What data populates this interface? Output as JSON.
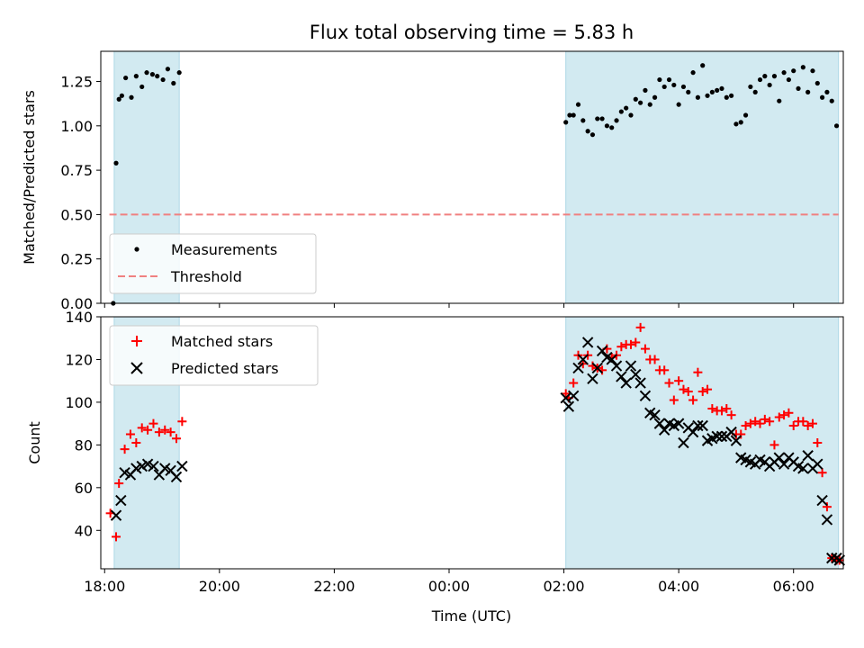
{
  "chart_data": [
    {
      "type": "scatter",
      "title": "Flux total observing time = 5.83 h",
      "xlabel": "",
      "ylabel": "Matched/Predicted stars",
      "xlim": [
        "17:56",
        "06:52"
      ],
      "ylim": [
        0.0,
        1.42
      ],
      "yticks": [
        "0.00",
        "0.25",
        "0.50",
        "0.75",
        "1.00",
        "1.25"
      ],
      "grid": false,
      "legend_placement": "lower-left",
      "shaded_intervals": [
        [
          "18:10",
          "19:18"
        ],
        [
          "02:02",
          "06:47"
        ]
      ],
      "shade_color": "#add8e6",
      "series": [
        {
          "name": "Measurements",
          "marker": "dot",
          "color": "#000000",
          "x": [
            "18:09",
            "18:12",
            "18:15",
            "18:18",
            "18:22",
            "18:28",
            "18:33",
            "18:39",
            "18:44",
            "18:50",
            "18:55",
            "19:01",
            "19:06",
            "19:12",
            "19:18",
            "02:02",
            "02:06",
            "02:10",
            "02:15",
            "02:20",
            "02:25",
            "02:30",
            "02:35",
            "02:40",
            "02:45",
            "02:50",
            "02:55",
            "03:00",
            "03:05",
            "03:10",
            "03:15",
            "03:20",
            "03:25",
            "03:30",
            "03:35",
            "03:40",
            "03:45",
            "03:50",
            "03:55",
            "04:00",
            "04:05",
            "04:10",
            "04:15",
            "04:20",
            "04:25",
            "04:30",
            "04:35",
            "04:40",
            "04:45",
            "04:50",
            "04:55",
            "05:00",
            "05:05",
            "05:10",
            "05:15",
            "05:20",
            "05:25",
            "05:30",
            "05:35",
            "05:40",
            "05:45",
            "05:50",
            "05:55",
            "06:00",
            "06:05",
            "06:10",
            "06:15",
            "06:20",
            "06:25",
            "06:30",
            "06:35",
            "06:40",
            "06:45"
          ],
          "y": [
            0.0,
            0.79,
            1.15,
            1.17,
            1.27,
            1.16,
            1.28,
            1.22,
            1.3,
            1.29,
            1.28,
            1.26,
            1.32,
            1.24,
            1.3,
            1.02,
            1.06,
            1.06,
            1.12,
            1.03,
            0.97,
            0.95,
            1.04,
            1.04,
            1.0,
            0.99,
            1.03,
            1.08,
            1.1,
            1.06,
            1.15,
            1.13,
            1.2,
            1.12,
            1.16,
            1.26,
            1.22,
            1.26,
            1.23,
            1.12,
            1.22,
            1.19,
            1.3,
            1.16,
            1.34,
            1.17,
            1.19,
            1.2,
            1.21,
            1.16,
            1.17,
            1.01,
            1.02,
            1.06,
            1.22,
            1.19,
            1.26,
            1.28,
            1.23,
            1.28,
            1.14,
            1.3,
            1.26,
            1.31,
            1.21,
            1.33,
            1.19,
            1.31,
            1.24,
            1.16,
            1.19,
            1.14,
            1.0
          ]
        },
        {
          "name": "Threshold",
          "marker": "dashed-line",
          "color": "#f08080",
          "x": [
            "18:05",
            "06:47"
          ],
          "y": [
            0.5,
            0.5
          ]
        }
      ]
    },
    {
      "type": "scatter",
      "title": "",
      "xlabel": "Time (UTC)",
      "ylabel": "Count",
      "xlim": [
        "17:56",
        "06:52"
      ],
      "ylim": [
        22,
        140
      ],
      "xticks": [
        "18:00",
        "20:00",
        "22:00",
        "00:00",
        "02:00",
        "04:00",
        "06:00"
      ],
      "yticks": [
        "40",
        "60",
        "80",
        "100",
        "120",
        "140"
      ],
      "grid": false,
      "legend_placement": "top-left",
      "shaded_intervals": [
        [
          "18:10",
          "19:18"
        ],
        [
          "02:02",
          "06:47"
        ]
      ],
      "shade_color": "#add8e6",
      "series": [
        {
          "name": "Matched stars",
          "marker": "plus",
          "color": "#ff0000",
          "x": [
            "18:06",
            "18:12",
            "18:15",
            "18:21",
            "18:27",
            "18:33",
            "18:39",
            "18:45",
            "18:51",
            "18:57",
            "19:03",
            "19:09",
            "19:15",
            "19:21",
            "02:02",
            "02:05",
            "02:10",
            "02:15",
            "02:20",
            "02:25",
            "02:30",
            "02:35",
            "02:40",
            "02:45",
            "02:50",
            "02:55",
            "03:00",
            "03:05",
            "03:10",
            "03:15",
            "03:20",
            "03:25",
            "03:30",
            "03:35",
            "03:40",
            "03:45",
            "03:50",
            "03:55",
            "04:00",
            "04:05",
            "04:10",
            "04:15",
            "04:20",
            "04:25",
            "04:30",
            "04:35",
            "04:40",
            "04:45",
            "04:50",
            "04:55",
            "05:00",
            "05:05",
            "05:10",
            "05:15",
            "05:20",
            "05:25",
            "05:30",
            "05:35",
            "05:40",
            "05:45",
            "05:50",
            "05:55",
            "06:00",
            "06:05",
            "06:10",
            "06:15",
            "06:20",
            "06:25",
            "06:30",
            "06:35",
            "06:40",
            "06:45",
            "06:48"
          ],
          "y": [
            48,
            37,
            62,
            78,
            85,
            81,
            88,
            87,
            90,
            86,
            87,
            86,
            83,
            91,
            104,
            102,
            109,
            122,
            118,
            122,
            117,
            116,
            115,
            125,
            121,
            122,
            126,
            127,
            127,
            128,
            135,
            125,
            120,
            120,
            115,
            115,
            109,
            101,
            110,
            106,
            105,
            101,
            114,
            105,
            106,
            97,
            96,
            96,
            97,
            94,
            85,
            85,
            89,
            90,
            91,
            90,
            92,
            91,
            80,
            93,
            94,
            95,
            89,
            91,
            91,
            89,
            90,
            81,
            67,
            51,
            27,
            26,
            26
          ]
        },
        {
          "name": "Predicted stars",
          "marker": "x",
          "color": "#000000",
          "x": [
            "18:12",
            "18:17",
            "18:21",
            "18:27",
            "18:33",
            "18:39",
            "18:45",
            "18:51",
            "18:57",
            "19:03",
            "19:09",
            "19:15",
            "19:21",
            "02:02",
            "02:05",
            "02:10",
            "02:15",
            "02:20",
            "02:25",
            "02:30",
            "02:35",
            "02:40",
            "02:45",
            "02:50",
            "02:55",
            "03:00",
            "03:05",
            "03:10",
            "03:15",
            "03:20",
            "03:25",
            "03:30",
            "03:35",
            "03:40",
            "03:45",
            "03:50",
            "03:55",
            "04:00",
            "04:05",
            "04:10",
            "04:15",
            "04:20",
            "04:25",
            "04:30",
            "04:35",
            "04:40",
            "04:45",
            "04:50",
            "04:55",
            "05:00",
            "05:05",
            "05:10",
            "05:15",
            "05:20",
            "05:25",
            "05:30",
            "05:35",
            "05:40",
            "05:45",
            "05:50",
            "05:55",
            "06:00",
            "06:05",
            "06:10",
            "06:15",
            "06:20",
            "06:25",
            "06:30",
            "06:35",
            "06:40",
            "06:45",
            "06:48"
          ],
          "y": [
            47,
            54,
            67,
            66,
            69,
            70,
            71,
            70,
            66,
            69,
            68,
            65,
            70,
            102,
            98,
            103,
            116,
            120,
            128,
            111,
            116,
            124,
            121,
            120,
            117,
            112,
            109,
            117,
            113,
            109,
            103,
            95,
            94,
            90,
            87,
            90,
            89,
            90,
            81,
            88,
            86,
            89,
            89,
            82,
            83,
            84,
            84,
            84,
            86,
            82,
            74,
            73,
            72,
            71,
            73,
            72,
            70,
            72,
            74,
            71,
            74,
            72,
            70,
            69,
            75,
            69,
            71,
            54,
            45,
            27,
            27,
            26
          ]
        }
      ]
    }
  ]
}
